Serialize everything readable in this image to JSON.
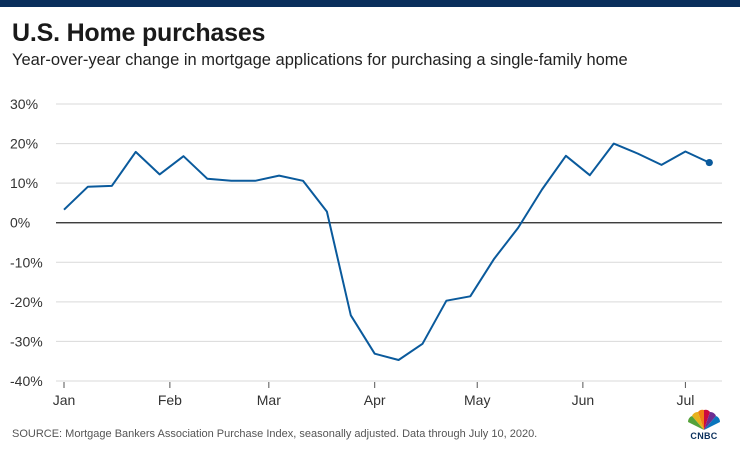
{
  "title": "U.S. Home purchases",
  "subtitle": "Year-over-year change in mortgage applications for purchasing a single-family home",
  "source": "SOURCE: Mortgage Bankers Association Purchase Index, seasonally adjusted. Data through July 10, 2020.",
  "logo_text": "CNBC",
  "colors": {
    "line": "#0a5a9c",
    "grid": "#d9d9d9",
    "zero": "#222222",
    "brand": "#0a2f5c"
  },
  "chart_data": {
    "type": "line",
    "title": "U.S. Home purchases",
    "subtitle": "Year-over-year change in mortgage applications for purchasing a single-family home",
    "xlabel": "",
    "ylabel": "",
    "ylim": [
      -40,
      30
    ],
    "yticks": [
      30,
      20,
      10,
      0,
      -10,
      -20,
      -30,
      -40
    ],
    "ytick_labels": [
      "30%",
      "20%",
      "10%",
      "0%",
      "-10%",
      "-20%",
      "-30%",
      "-40%"
    ],
    "month_ticks": [
      {
        "label": "Jan",
        "week": 0
      },
      {
        "label": "Feb",
        "week": 4.43
      },
      {
        "label": "Mar",
        "week": 8.57
      },
      {
        "label": "Apr",
        "week": 13.0
      },
      {
        "label": "May",
        "week": 17.29
      },
      {
        "label": "Jun",
        "week": 21.71
      },
      {
        "label": "Jul",
        "week": 26.0
      }
    ],
    "grid": true,
    "series": [
      {
        "x": [
          0,
          1,
          2,
          3,
          4,
          5,
          6,
          7,
          8,
          9,
          10,
          11,
          12,
          13,
          14,
          15,
          16,
          17,
          18,
          19,
          20,
          21,
          22,
          23,
          24,
          25,
          26,
          27
        ],
        "values": [
          3.3,
          9.1,
          9.3,
          17.9,
          12.2,
          16.8,
          11.1,
          10.6,
          10.6,
          11.9,
          10.6,
          2.8,
          -23.4,
          -33.1,
          -34.7,
          -30.6,
          -19.7,
          -18.6,
          -9.1,
          -1.3,
          8.4,
          16.9,
          12.0,
          20.0,
          17.5,
          14.6,
          18.0,
          15.2
        ]
      }
    ]
  }
}
